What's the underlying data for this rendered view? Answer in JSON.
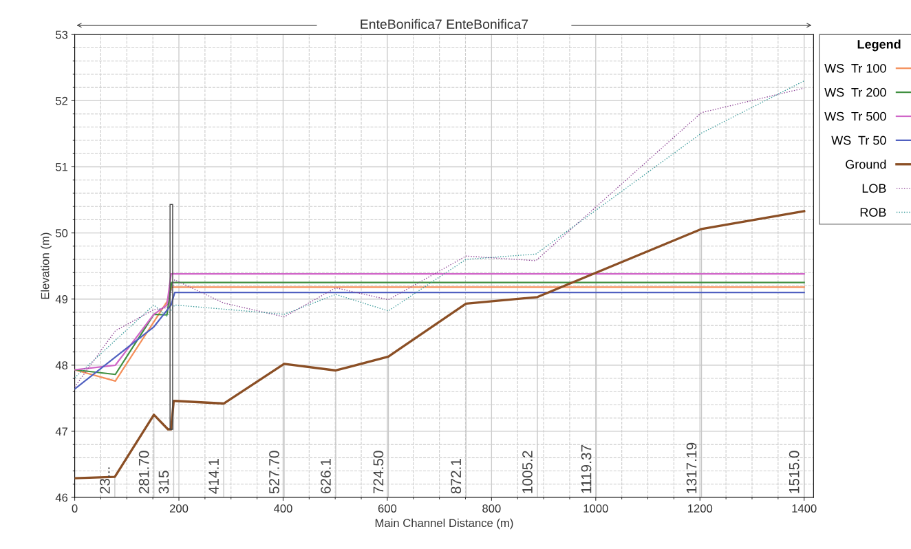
{
  "chart_data": {
    "type": "line",
    "title": "EnteBonifica7 EnteBonifica7",
    "xlabel": "Main Channel Distance (m)",
    "ylabel": "Elevation (m)",
    "legend_title": "Legend",
    "legend": "right",
    "grid": true,
    "marker": "none",
    "xlim": [
      0,
      1418
    ],
    "xticks": [
      0,
      200,
      400,
      600,
      800,
      1000,
      1200,
      1400
    ],
    "ylim": [
      46,
      53
    ],
    "yticks": [
      46,
      47,
      48,
      49,
      50,
      51,
      52,
      53
    ],
    "series": [
      {
        "name": "WS  Tr 100",
        "color": "#f58f5a",
        "line_style": "solid",
        "x": [
          0,
          78,
          177,
          186,
          1400
        ],
        "values": [
          47.93,
          47.76,
          48.96,
          49.18,
          49.18
        ]
      },
      {
        "name": "WS  Tr 200",
        "color": "#3f8f3f",
        "line_style": "solid",
        "x": [
          0,
          78,
          152,
          177,
          186,
          1400
        ],
        "values": [
          47.93,
          47.86,
          48.77,
          48.76,
          49.25,
          49.25
        ]
      },
      {
        "name": "WS  Tr 500",
        "color": "#d066c8",
        "line_style": "solid",
        "x": [
          0,
          78,
          152,
          177,
          185,
          1400
        ],
        "values": [
          47.93,
          48.0,
          48.77,
          48.91,
          49.38,
          49.38
        ]
      },
      {
        "name": "WS  Tr 50",
        "color": "#5060c0",
        "line_style": "solid",
        "x": [
          0,
          152,
          185,
          192,
          1400
        ],
        "values": [
          47.64,
          48.58,
          48.91,
          49.1,
          49.1
        ]
      },
      {
        "name": "Ground",
        "color": "#8b4f25",
        "line_style": "solid",
        "x": [
          0,
          77,
          152,
          179,
          185,
          190,
          286,
          402,
          501,
          602,
          751,
          888,
          1001,
          1203,
          1400
        ],
        "values": [
          46.29,
          46.31,
          47.25,
          47.03,
          47.03,
          47.46,
          47.42,
          48.02,
          47.92,
          48.13,
          48.93,
          49.03,
          49.4,
          50.06,
          50.33
        ]
      },
      {
        "name": "LOB",
        "color": "#8e4596",
        "line_style": "dotted",
        "x": [
          0,
          78,
          152,
          177,
          192,
          286,
          402,
          501,
          602,
          751,
          885,
          1203,
          1400
        ],
        "values": [
          47.67,
          48.52,
          48.84,
          48.87,
          49.29,
          48.94,
          48.73,
          49.17,
          48.99,
          49.65,
          49.58,
          51.82,
          52.19
        ]
      },
      {
        "name": "ROB",
        "color": "#3a9a9a",
        "line_style": "dotted",
        "x": [
          0,
          152,
          177,
          192,
          402,
          501,
          602,
          751,
          885,
          1203,
          1400
        ],
        "values": [
          47.81,
          48.91,
          48.74,
          48.91,
          48.77,
          49.07,
          48.82,
          49.6,
          49.68,
          51.51,
          52.3
        ]
      }
    ],
    "annotations": [
      {
        "text": "23...",
        "x": 77,
        "y": 46.31
      },
      {
        "text": "281.70",
        "x": 152,
        "y": 47.25
      },
      {
        "text": "315",
        "x": 190,
        "y": 47.46
      },
      {
        "text": "414.1",
        "x": 286,
        "y": 47.42
      },
      {
        "text": "527.70",
        "x": 402,
        "y": 48.02
      },
      {
        "text": "626.1",
        "x": 501,
        "y": 47.92
      },
      {
        "text": "724.50",
        "x": 602,
        "y": 48.13
      },
      {
        "text": "872.1",
        "x": 751,
        "y": 48.93
      },
      {
        "text": "1005.2",
        "x": 888,
        "y": 49.03
      },
      {
        "text": "1119.37",
        "x": 1001,
        "y": 49.4
      },
      {
        "text": "1317.19",
        "x": 1203,
        "y": 50.06
      },
      {
        "text": "1515.0",
        "x": 1400,
        "y": 50.33
      }
    ]
  }
}
